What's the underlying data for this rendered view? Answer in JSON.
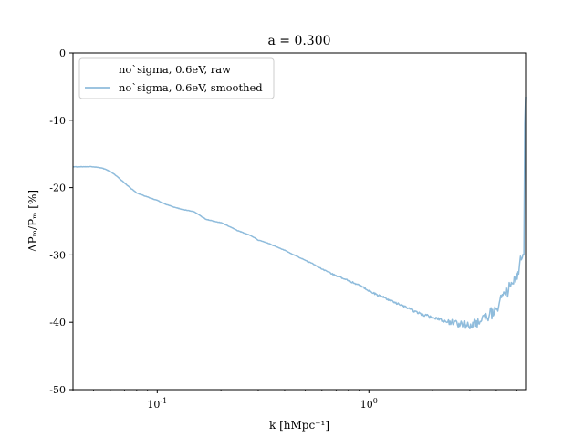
{
  "chart_data": {
    "type": "line",
    "title": "a = 0.300",
    "xlabel": "k [hMpc⁻¹]",
    "ylabel": "ΔPₘ/Pₘ [%]",
    "xscale": "log",
    "xlim": [
      0.04,
      5.5
    ],
    "ylim": [
      -50,
      0
    ],
    "yticks": [
      0,
      -10,
      -20,
      -30,
      -40,
      -50
    ],
    "ytick_labels": [
      "0",
      "-10",
      "-20",
      "-30",
      "-40",
      "-50"
    ],
    "xticks": [
      0.1,
      1
    ],
    "grid": false,
    "legend_position": "top-left",
    "series": [
      {
        "name": "noˋsigma, 0.6eV, raw",
        "color": "#ffffff",
        "x": [],
        "y": []
      },
      {
        "name": "noˋsigma, 0.6eV, smoothed",
        "color": "#8fbcdc",
        "x": [
          0.04,
          0.045,
          0.05,
          0.055,
          0.06,
          0.065,
          0.07,
          0.075,
          0.08,
          0.09,
          0.1,
          0.11,
          0.12,
          0.13,
          0.14,
          0.15,
          0.16,
          0.17,
          0.18,
          0.19,
          0.2,
          0.22,
          0.24,
          0.26,
          0.28,
          0.3,
          0.33,
          0.36,
          0.4,
          0.45,
          0.5,
          0.55,
          0.6,
          0.7,
          0.8,
          0.9,
          1.0,
          1.1,
          1.2,
          1.3,
          1.5,
          1.7,
          2.0,
          2.3,
          2.6,
          3.0,
          3.3,
          3.6,
          4.0,
          4.3,
          4.6,
          4.9,
          5.1,
          5.2,
          5.3,
          5.4,
          5.45,
          5.5
        ],
        "y": [
          -16.9,
          -16.9,
          -16.9,
          -17.1,
          -17.6,
          -18.4,
          -19.3,
          -20.1,
          -20.8,
          -21.4,
          -21.9,
          -22.5,
          -22.9,
          -23.2,
          -23.4,
          -23.6,
          -24.2,
          -24.7,
          -24.9,
          -25.1,
          -25.2,
          -25.8,
          -26.4,
          -26.8,
          -27.2,
          -27.8,
          -28.2,
          -28.7,
          -29.3,
          -30.1,
          -30.8,
          -31.4,
          -32.1,
          -33.1,
          -33.8,
          -34.5,
          -35.3,
          -36.0,
          -36.4,
          -36.9,
          -37.8,
          -38.6,
          -39.3,
          -39.8,
          -40.2,
          -40.4,
          -40.1,
          -39.3,
          -38.0,
          -36.5,
          -35.0,
          -33.5,
          -32.0,
          -31.0,
          -30.0,
          -29.0,
          -10.0,
          -6.5
        ]
      }
    ]
  }
}
